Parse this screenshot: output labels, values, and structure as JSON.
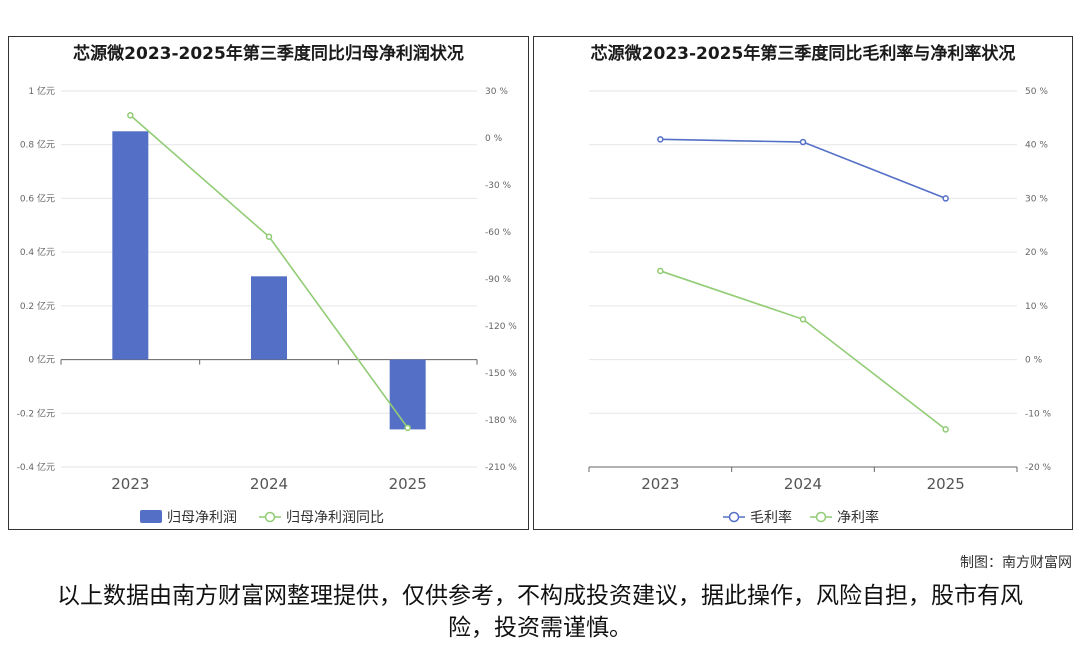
{
  "charts": [
    {
      "title": "芯源微2023-2025年第三季度同比归母净利润状况",
      "chart_data": {
        "type": "bar",
        "categories": [
          "2023",
          "2024",
          "2025"
        ],
        "series": [
          {
            "name": "归母净利润",
            "type": "bar",
            "axis": "left",
            "values": [
              0.85,
              0.31,
              -0.26
            ],
            "color": "#5470c6"
          },
          {
            "name": "归母净利润同比",
            "type": "line",
            "axis": "right",
            "values": [
              14.5,
              -63,
              -185
            ],
            "color": "#91cc75"
          }
        ],
        "y_left": {
          "min": -0.4,
          "max": 1,
          "ticks": [
            1,
            0.8,
            0.6,
            0.4,
            0.2,
            0,
            -0.2,
            -0.4
          ],
          "tick_labels": [
            "1 亿元",
            "0.8 亿元",
            "0.6 亿元",
            "0.4 亿元",
            "0.2 亿元",
            "0 亿元",
            "-0.2 亿元",
            "-0.4 亿元"
          ]
        },
        "y_right": {
          "min": -210,
          "max": 30,
          "ticks": [
            30,
            0,
            -30,
            -60,
            -90,
            -120,
            -150,
            -180,
            -210
          ],
          "tick_labels": [
            "30 %",
            "0 %",
            "-30 %",
            "-60 %",
            "-90 %",
            "-120 %",
            "-150 %",
            "-180 %",
            "-210 %"
          ]
        },
        "legend": "bottom-center"
      }
    },
    {
      "title": "芯源微2023-2025年第三季度同比毛利率与净利率状况",
      "chart_data": {
        "type": "line",
        "categories": [
          "2023",
          "2024",
          "2025"
        ],
        "series": [
          {
            "name": "毛利率",
            "values": [
              41,
              40.5,
              30
            ],
            "color": "#5470c6"
          },
          {
            "name": "净利率",
            "values": [
              16.5,
              7.5,
              -13
            ],
            "color": "#91cc75"
          }
        ],
        "y_right": {
          "min": -20,
          "max": 50,
          "ticks": [
            50,
            40,
            30,
            20,
            10,
            0,
            -10,
            -20
          ],
          "tick_labels": [
            "50 %",
            "40 %",
            "30 %",
            "20 %",
            "10 %",
            "0 %",
            "-10 %",
            "-20 %"
          ]
        },
        "legend": "bottom-center"
      }
    }
  ],
  "credit": "制图：南方财富网",
  "disclaimer": "以上数据由南方财富网整理提供，仅供参考，不构成投资建议，据此操作，风险自担，股市有风险，投资需谨慎。"
}
